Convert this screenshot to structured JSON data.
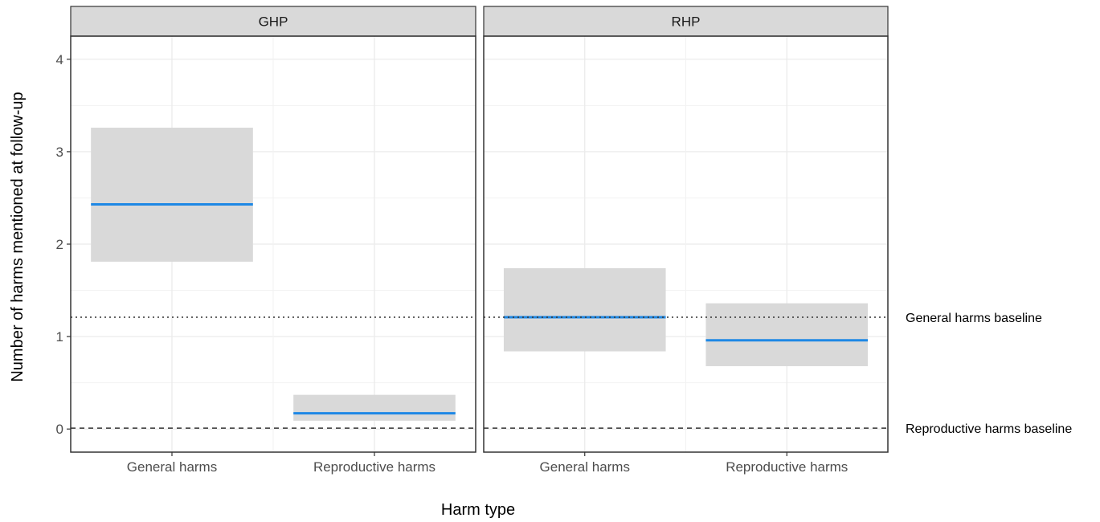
{
  "chart_data": {
    "type": "crossbar",
    "xlabel": "Harm type",
    "ylabel": "Number of harms mentioned at follow-up",
    "ylim": [
      -0.25,
      4.25
    ],
    "yticks": [
      0,
      1,
      2,
      3,
      4
    ],
    "categories": [
      "General harms",
      "Reproductive harms"
    ],
    "grid": true,
    "colors": {
      "mean_line": "#1e88e5",
      "interval_fill": "#d9d9d9",
      "strip_fill": "#d9d9d9"
    },
    "panels": [
      {
        "name": "GHP",
        "bars": [
          {
            "category": "General harms",
            "mean": 2.43,
            "lower": 1.81,
            "upper": 3.26
          },
          {
            "category": "Reproductive harms",
            "mean": 0.17,
            "lower": 0.09,
            "upper": 0.37
          }
        ]
      },
      {
        "name": "RHP",
        "bars": [
          {
            "category": "General harms",
            "mean": 1.21,
            "lower": 0.84,
            "upper": 1.74
          },
          {
            "category": "Reproductive harms",
            "mean": 0.96,
            "lower": 0.68,
            "upper": 1.36
          }
        ]
      }
    ],
    "reference_lines": [
      {
        "label": "General harms baseline",
        "value": 1.21,
        "style": "dotted"
      },
      {
        "label": "Reproductive harms baseline",
        "value": 0.01,
        "style": "dashed"
      }
    ]
  }
}
